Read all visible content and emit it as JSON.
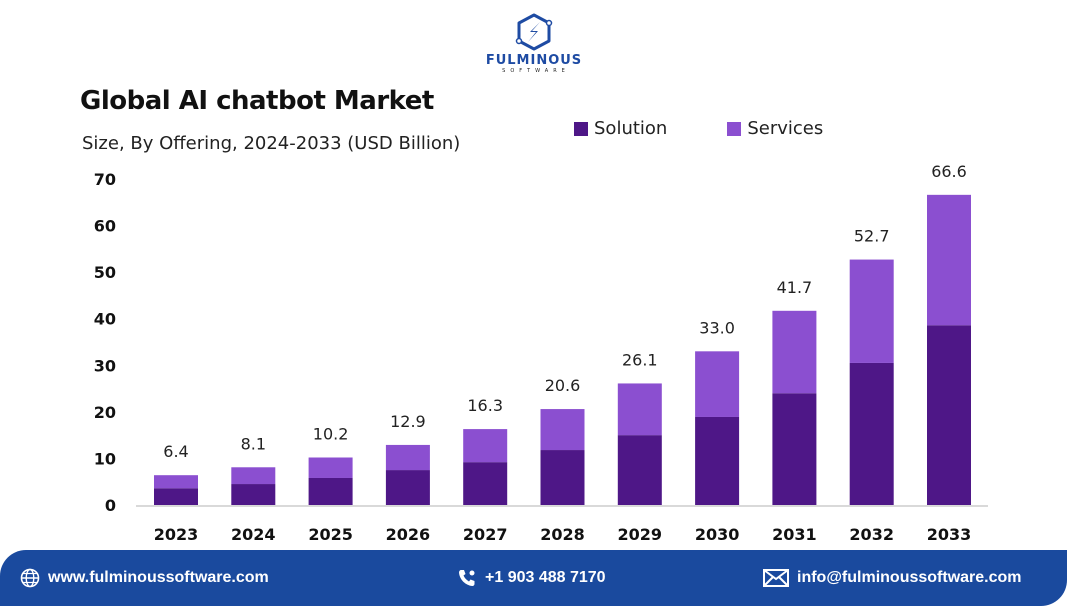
{
  "brand": {
    "name": "FULMINOUS",
    "sub": "SOFTWARE",
    "color": "#1e4ba3"
  },
  "chart_data": {
    "type": "bar",
    "stacked": true,
    "title": "Global AI chatbot Market",
    "subtitle": "Size, By Offering, 2024-2033 (USD Billion)",
    "xlabel": "",
    "ylabel": "",
    "ylim": [
      0,
      70
    ],
    "yticks": [
      0,
      10,
      20,
      30,
      40,
      50,
      60,
      70
    ],
    "grid": false,
    "legend_position": "top-right",
    "categories": [
      "2023",
      "2024",
      "2025",
      "2026",
      "2027",
      "2028",
      "2029",
      "2030",
      "2031",
      "2032",
      "2033"
    ],
    "totals": [
      6.4,
      8.1,
      10.2,
      12.9,
      16.3,
      20.6,
      26.1,
      33.0,
      41.7,
      52.7,
      66.6
    ],
    "total_labels": [
      "6.4",
      "8.1",
      "10.2",
      "12.9",
      "16.3",
      "20.6",
      "26.1",
      "33.0",
      "41.7",
      "52.7",
      "66.6"
    ],
    "series": [
      {
        "name": "Solution",
        "color": "#4e1787",
        "values": [
          3.6,
          4.5,
          5.8,
          7.5,
          9.2,
          11.8,
          15.0,
          18.9,
          24.0,
          30.5,
          38.6
        ]
      },
      {
        "name": "Services",
        "color": "#8b4fd0",
        "values": [
          2.8,
          3.6,
          4.4,
          5.4,
          7.1,
          8.8,
          11.1,
          14.1,
          17.7,
          22.2,
          28.0
        ]
      }
    ]
  },
  "footer": {
    "website": "www.fulminoussoftware.com",
    "phone": "+1 903 488 7170",
    "email": "info@fulminoussoftware.com",
    "background": "#1a4a9e"
  }
}
